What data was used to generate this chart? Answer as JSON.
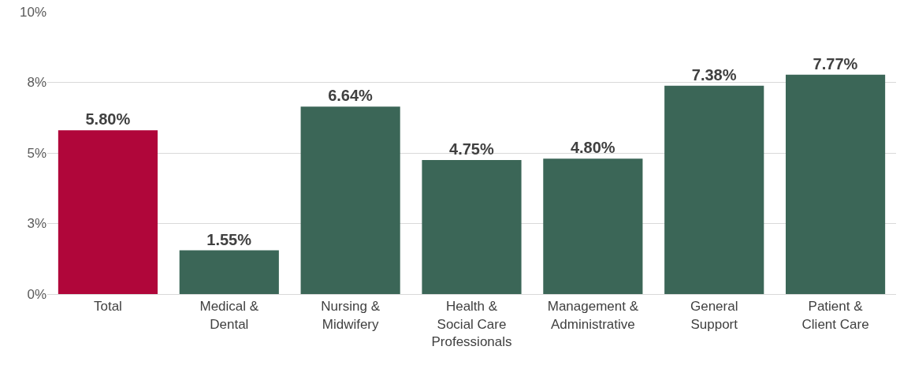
{
  "chart_data": {
    "type": "bar",
    "categories": [
      "Total",
      "Medical & Dental",
      "Nursing & Midwifery",
      "Health & Social Care Professionals",
      "Management & Administrative",
      "General Support",
      "Patient & Client Care"
    ],
    "values": [
      5.8,
      1.55,
      6.64,
      4.75,
      4.8,
      7.38,
      7.77
    ],
    "value_labels": [
      "5.80%",
      "1.55%",
      "6.64%",
      "4.75%",
      "4.80%",
      "7.38%",
      "7.77%"
    ],
    "colors": [
      "#b0063a",
      "#3b6657",
      "#3b6657",
      "#3b6657",
      "#3b6657",
      "#3b6657",
      "#3b6657"
    ],
    "ylim": [
      0,
      10
    ],
    "yticks": [
      {
        "value": 0,
        "label": "0%"
      },
      {
        "value": 2.5,
        "label": "3%"
      },
      {
        "value": 5,
        "label": "5%"
      },
      {
        "value": 7.5,
        "label": "8%"
      },
      {
        "value": 10,
        "label": "10%"
      }
    ],
    "grid": "y"
  }
}
